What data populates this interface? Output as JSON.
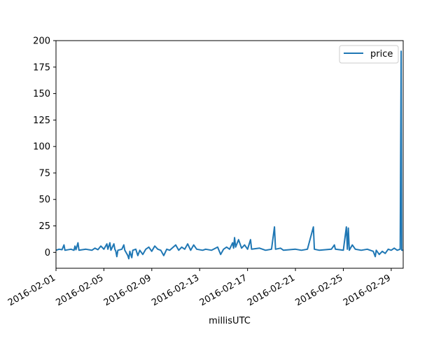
{
  "chart_data": {
    "type": "line",
    "title": "",
    "xlabel": "millisUTC",
    "ylabel": "",
    "x_type": "date",
    "xlim": [
      "2016-02-01",
      "2016-03-01"
    ],
    "ylim": [
      -15,
      200
    ],
    "x_ticks": [
      "2016-02-01",
      "2016-02-05",
      "2016-02-09",
      "2016-02-13",
      "2016-02-17",
      "2016-02-21",
      "2016-02-25",
      "2016-02-29"
    ],
    "y_ticks": [
      0,
      25,
      50,
      75,
      100,
      125,
      150,
      175,
      200
    ],
    "legend": {
      "position": "top-right",
      "entries": [
        "price"
      ]
    },
    "grid": false,
    "series": [
      {
        "name": "price",
        "color": "#1f77b4",
        "points": [
          [
            "2016-02-01 00:00",
            2
          ],
          [
            "2016-02-01 06:00",
            3
          ],
          [
            "2016-02-01 12:00",
            2.5
          ],
          [
            "2016-02-01 16:00",
            7
          ],
          [
            "2016-02-01 18:00",
            2
          ],
          [
            "2016-02-02 06:00",
            3
          ],
          [
            "2016-02-02 12:00",
            2
          ],
          [
            "2016-02-02 14:00",
            6
          ],
          [
            "2016-02-02 16:00",
            2.5
          ],
          [
            "2016-02-02 20:00",
            9
          ],
          [
            "2016-02-02 22:00",
            2
          ],
          [
            "2016-02-03 12:00",
            3
          ],
          [
            "2016-02-04 00:00",
            2
          ],
          [
            "2016-02-04 06:00",
            4
          ],
          [
            "2016-02-04 12:00",
            2.5
          ],
          [
            "2016-02-04 18:00",
            6
          ],
          [
            "2016-02-05 00:00",
            3
          ],
          [
            "2016-02-05 06:00",
            8
          ],
          [
            "2016-02-05 08:00",
            3
          ],
          [
            "2016-02-05 12:00",
            9
          ],
          [
            "2016-02-05 14:00",
            2
          ],
          [
            "2016-02-05 20:00",
            8
          ],
          [
            "2016-02-05 22:00",
            3
          ],
          [
            "2016-02-06 00:00",
            1
          ],
          [
            "2016-02-06 02:00",
            -4
          ],
          [
            "2016-02-06 04:00",
            2
          ],
          [
            "2016-02-06 12:00",
            3
          ],
          [
            "2016-02-06 16:00",
            7
          ],
          [
            "2016-02-06 18:00",
            2
          ],
          [
            "2016-02-07 00:00",
            -3
          ],
          [
            "2016-02-07 02:00",
            -6
          ],
          [
            "2016-02-07 04:00",
            1
          ],
          [
            "2016-02-07 08:00",
            -5
          ],
          [
            "2016-02-07 10:00",
            2
          ],
          [
            "2016-02-07 16:00",
            3
          ],
          [
            "2016-02-07 20:00",
            -3
          ],
          [
            "2016-02-08 00:00",
            2
          ],
          [
            "2016-02-08 06:00",
            -2
          ],
          [
            "2016-02-08 12:00",
            3
          ],
          [
            "2016-02-08 18:00",
            5
          ],
          [
            "2016-02-09 00:00",
            1
          ],
          [
            "2016-02-09 06:00",
            6
          ],
          [
            "2016-02-09 12:00",
            3
          ],
          [
            "2016-02-09 18:00",
            2
          ],
          [
            "2016-02-10 00:00",
            -3
          ],
          [
            "2016-02-10 06:00",
            3
          ],
          [
            "2016-02-10 12:00",
            2
          ],
          [
            "2016-02-11 00:00",
            7
          ],
          [
            "2016-02-11 06:00",
            2
          ],
          [
            "2016-02-11 12:00",
            5
          ],
          [
            "2016-02-11 18:00",
            3
          ],
          [
            "2016-02-12 00:00",
            8
          ],
          [
            "2016-02-12 06:00",
            2
          ],
          [
            "2016-02-12 12:00",
            7
          ],
          [
            "2016-02-12 18:00",
            3
          ],
          [
            "2016-02-13 06:00",
            2
          ],
          [
            "2016-02-13 12:00",
            3
          ],
          [
            "2016-02-14 00:00",
            2
          ],
          [
            "2016-02-14 12:00",
            5
          ],
          [
            "2016-02-14 18:00",
            -2
          ],
          [
            "2016-02-15 00:00",
            3
          ],
          [
            "2016-02-15 06:00",
            5
          ],
          [
            "2016-02-15 12:00",
            3
          ],
          [
            "2016-02-15 18:00",
            9
          ],
          [
            "2016-02-15 20:00",
            4
          ],
          [
            "2016-02-15 22:00",
            14
          ],
          [
            "2016-02-16 00:00",
            5
          ],
          [
            "2016-02-16 06:00",
            12
          ],
          [
            "2016-02-16 12:00",
            4
          ],
          [
            "2016-02-16 18:00",
            7
          ],
          [
            "2016-02-17 00:00",
            3
          ],
          [
            "2016-02-17 06:00",
            12
          ],
          [
            "2016-02-17 08:00",
            3
          ],
          [
            "2016-02-18 00:00",
            4
          ],
          [
            "2016-02-18 12:00",
            2
          ],
          [
            "2016-02-19 00:00",
            3
          ],
          [
            "2016-02-19 06:00",
            24
          ],
          [
            "2016-02-19 08:00",
            3
          ],
          [
            "2016-02-19 18:00",
            4
          ],
          [
            "2016-02-20 00:00",
            2
          ],
          [
            "2016-02-21 00:00",
            3
          ],
          [
            "2016-02-21 12:00",
            2
          ],
          [
            "2016-02-22 00:00",
            3
          ],
          [
            "2016-02-22 12:00",
            24
          ],
          [
            "2016-02-22 14:00",
            3
          ],
          [
            "2016-02-23 00:00",
            2
          ],
          [
            "2016-02-24 00:00",
            3
          ],
          [
            "2016-02-24 06:00",
            7
          ],
          [
            "2016-02-24 08:00",
            3
          ],
          [
            "2016-02-25 00:00",
            2
          ],
          [
            "2016-02-25 06:00",
            24
          ],
          [
            "2016-02-25 08:00",
            3
          ],
          [
            "2016-02-25 10:00",
            23
          ],
          [
            "2016-02-25 12:00",
            2
          ],
          [
            "2016-02-25 18:00",
            7
          ],
          [
            "2016-02-26 00:00",
            3
          ],
          [
            "2016-02-26 12:00",
            2
          ],
          [
            "2016-02-27 00:00",
            3
          ],
          [
            "2016-02-27 12:00",
            1
          ],
          [
            "2016-02-27 16:00",
            -4
          ],
          [
            "2016-02-27 18:00",
            2
          ],
          [
            "2016-02-28 00:00",
            -2
          ],
          [
            "2016-02-28 06:00",
            1
          ],
          [
            "2016-02-28 12:00",
            -1
          ],
          [
            "2016-02-28 18:00",
            3
          ],
          [
            "2016-02-29 00:00",
            2
          ],
          [
            "2016-02-29 06:00",
            4
          ],
          [
            "2016-02-29 12:00",
            2
          ],
          [
            "2016-02-29 18:00",
            3
          ],
          [
            "2016-02-29 20:00",
            190
          ],
          [
            "2016-02-29 21:00",
            2
          ],
          [
            "2016-03-01 00:00",
            2
          ]
        ]
      }
    ]
  }
}
